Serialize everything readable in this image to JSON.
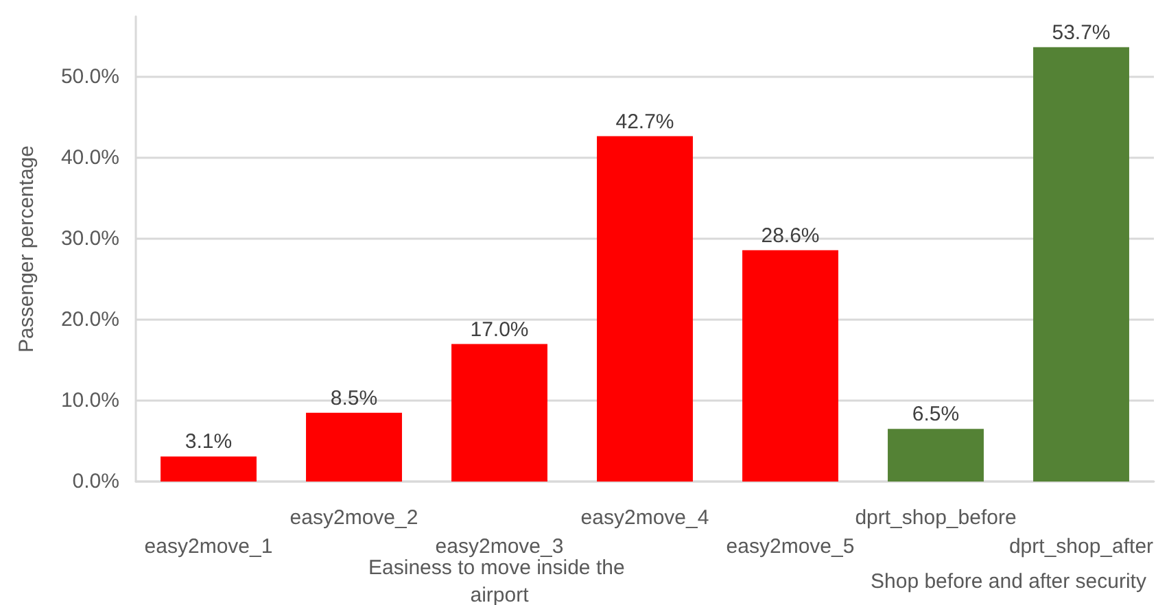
{
  "chart_data": {
    "type": "bar",
    "ylabel": "Passenger percentage",
    "categories": [
      "easy2move_1",
      "easy2move_2",
      "easy2move_3",
      "easy2move_4",
      "easy2move_5",
      "dprt_shop_before",
      "dprt_shop_after"
    ],
    "series": [
      {
        "color": "#ff0000",
        "values": [
          3.1,
          8.5,
          17.0,
          42.7,
          28.6,
          null,
          null
        ],
        "value_labels": [
          "3.1%",
          "8.5%",
          "17.0%",
          "42.7%",
          "28.6%",
          null,
          null
        ]
      },
      {
        "color": "#548235",
        "values": [
          null,
          null,
          null,
          null,
          null,
          6.5,
          53.7
        ],
        "value_labels": [
          null,
          null,
          null,
          null,
          null,
          "6.5%",
          "53.7%"
        ]
      }
    ],
    "annotations": [
      "Easiness to move inside the airport",
      "Shop before and after security"
    ],
    "ylim": [
      0,
      57.5
    ],
    "yticks": [
      {
        "value": 0,
        "label": "0.0%"
      },
      {
        "value": 10,
        "label": "10.0%"
      },
      {
        "value": 20,
        "label": "20.0%"
      },
      {
        "value": 30,
        "label": "30.0%"
      },
      {
        "value": 40,
        "label": "40.0%"
      },
      {
        "value": 50,
        "label": "50.0%"
      }
    ],
    "grid": "y"
  }
}
